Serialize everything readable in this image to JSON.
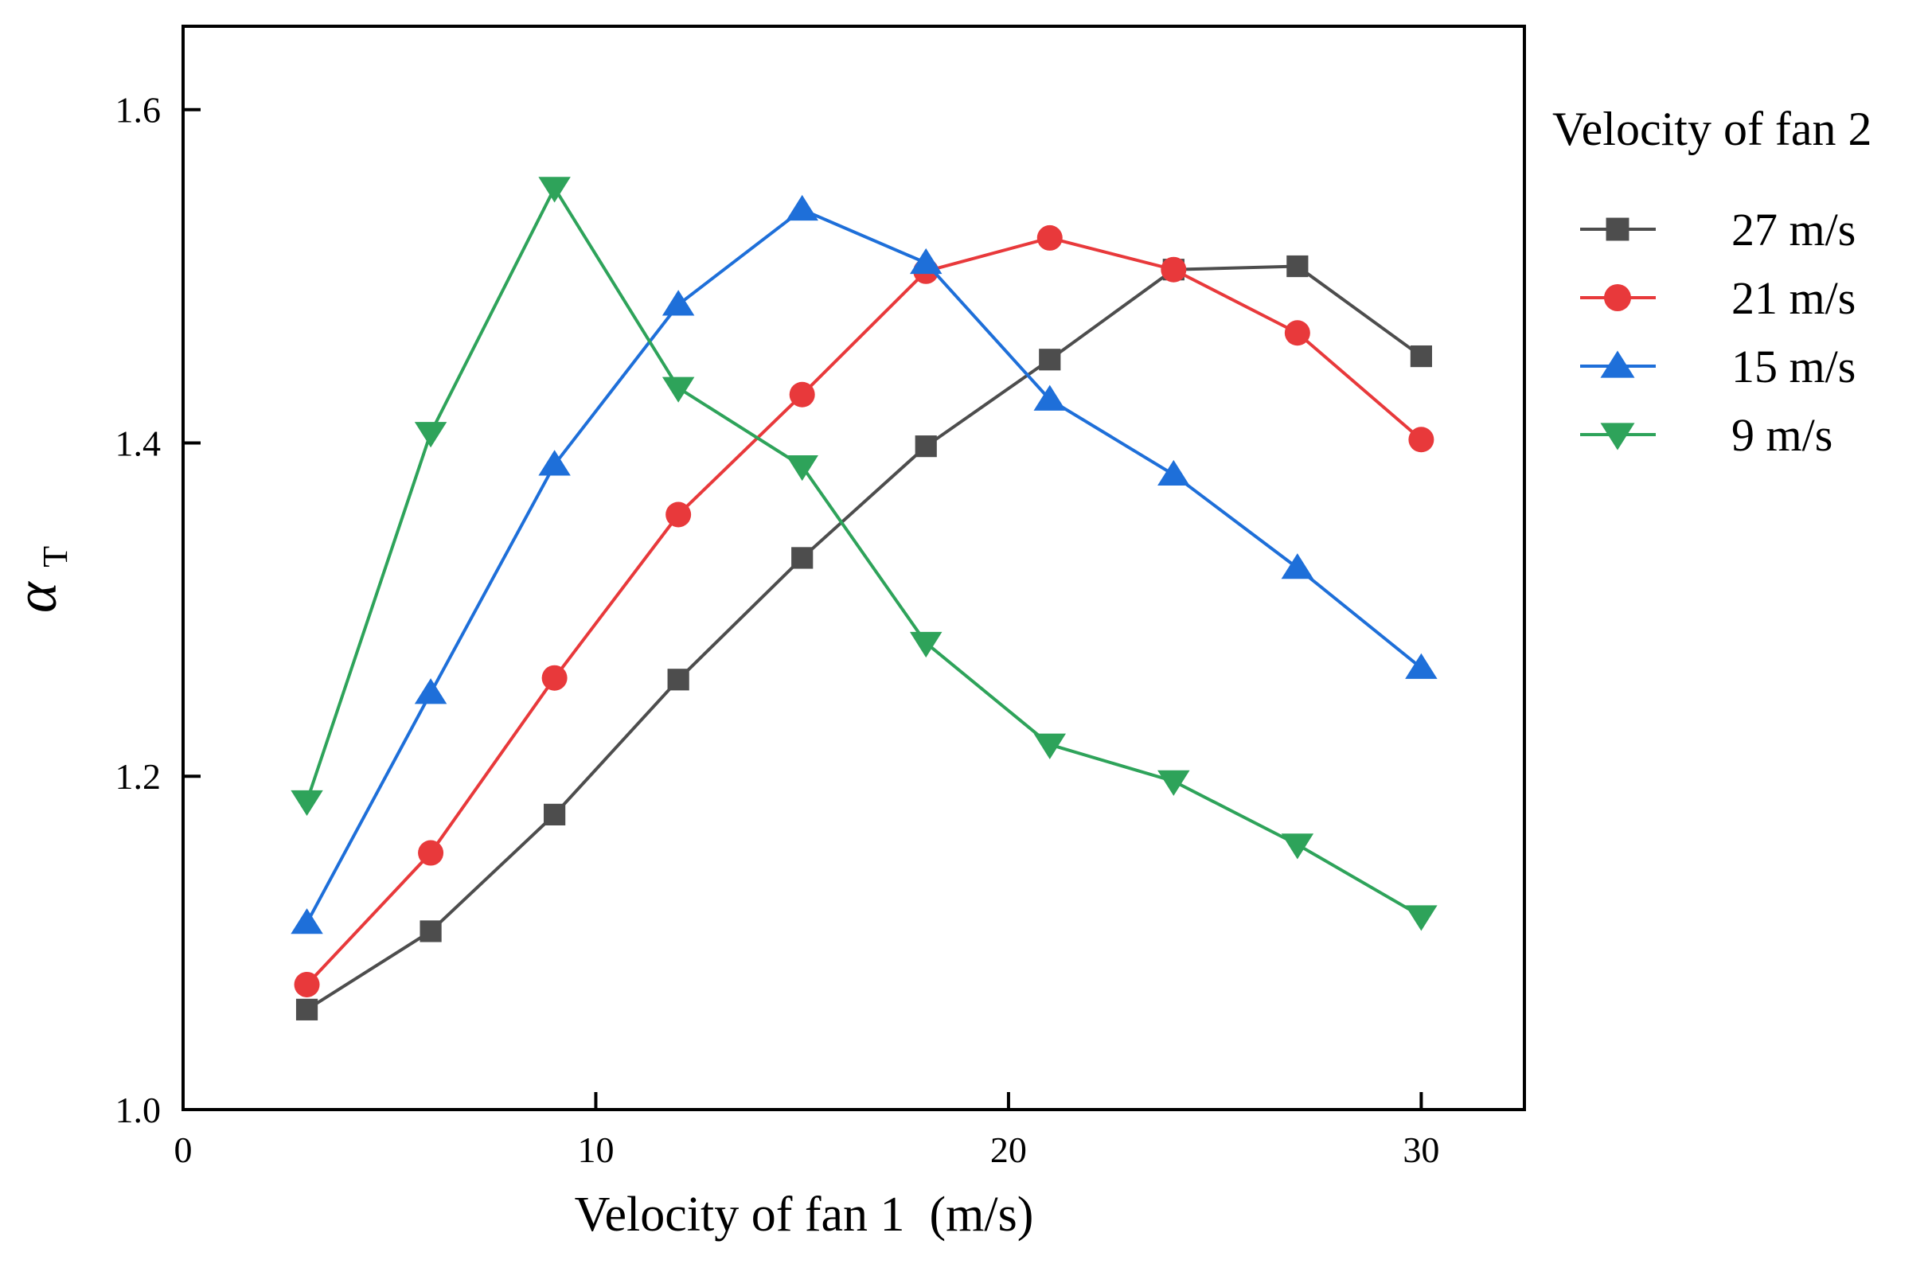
{
  "chart_data": {
    "type": "line",
    "xlabel": "Velocity of fan 1  (m/s)",
    "ylabel": "α",
    "ylabel_subscript": "T",
    "xlim": [
      0,
      32.5
    ],
    "ylim": [
      1.0,
      1.65
    ],
    "xticks": [
      0,
      10,
      20,
      30
    ],
    "xtick_labels": [
      "0",
      "10",
      "20",
      "30"
    ],
    "yticks": [
      1.0,
      1.2,
      1.4,
      1.6
    ],
    "ytick_labels": [
      "1.0",
      "1.2",
      "1.4",
      "1.6"
    ],
    "grid": false,
    "legend": {
      "title": "Velocity of fan 2",
      "placement": "right, outside plot"
    },
    "x": [
      3,
      6,
      9,
      12,
      15,
      18,
      21,
      24,
      27,
      30
    ],
    "series": [
      {
        "name": "27 m/s",
        "color": "#4d4d4d",
        "marker": "square",
        "values": [
          1.06,
          1.107,
          1.177,
          1.258,
          1.331,
          1.398,
          1.45,
          1.504,
          1.506,
          1.452
        ]
      },
      {
        "name": "21 m/s",
        "color": "#e8393b",
        "marker": "circle",
        "values": [
          1.075,
          1.154,
          1.259,
          1.357,
          1.429,
          1.503,
          1.523,
          1.504,
          1.466,
          1.402
        ]
      },
      {
        "name": "15 m/s",
        "color": "#1e6fd9",
        "marker": "triangle-up",
        "values": [
          1.112,
          1.25,
          1.387,
          1.483,
          1.54,
          1.508,
          1.426,
          1.381,
          1.325,
          1.265
        ]
      },
      {
        "name": "9 m/s",
        "color": "#2ea35a",
        "marker": "triangle-down",
        "values": [
          1.185,
          1.406,
          1.553,
          1.433,
          1.386,
          1.28,
          1.219,
          1.197,
          1.159,
          1.116
        ]
      }
    ]
  }
}
